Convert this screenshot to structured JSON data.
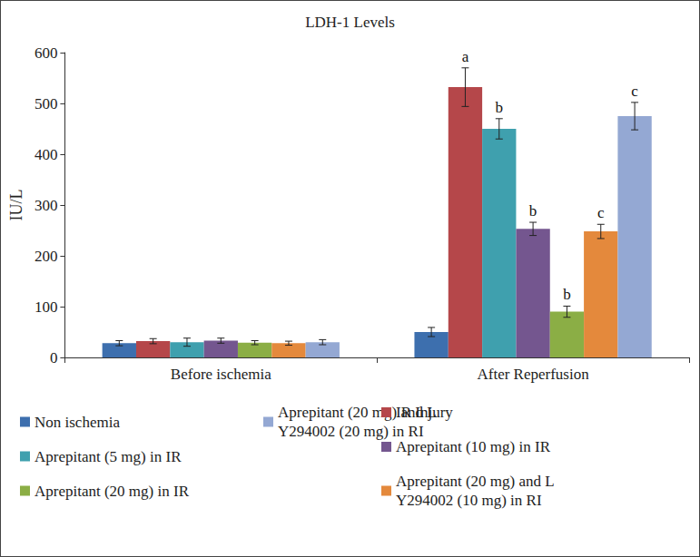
{
  "chart_data": {
    "type": "bar",
    "title": "LDH-1 Levels",
    "y_label": "IU/L",
    "categories": [
      "Before ischemia",
      "After Reperfusion"
    ],
    "series": [
      {
        "name": "Non ischemia",
        "color": "#3d6fae",
        "values": [
          28,
          50
        ],
        "errors": [
          5,
          9
        ],
        "annotations": [
          null,
          null
        ]
      },
      {
        "name": "IR Injury",
        "color": "#b5474a",
        "values": [
          32,
          532
        ],
        "errors": [
          5,
          38
        ],
        "annotations": [
          null,
          "a"
        ]
      },
      {
        "name": "Aprepitant (5 mg) in IR",
        "color": "#3fa0ae",
        "values": [
          30,
          450
        ],
        "errors": [
          8,
          20
        ],
        "annotations": [
          null,
          "b"
        ]
      },
      {
        "name": "Aprepitant (10 mg) in IR",
        "color": "#74568f",
        "values": [
          33,
          253
        ],
        "errors": [
          5,
          13
        ],
        "annotations": [
          null,
          "b"
        ]
      },
      {
        "name": "Aprepitant (20 mg) in IR",
        "color": "#8bae45",
        "values": [
          29,
          90
        ],
        "errors": [
          4,
          11
        ],
        "annotations": [
          null,
          "b"
        ]
      },
      {
        "name": "Aprepitant (20 mg) and L Y294002 (10 mg) in RI",
        "color": "#e4893c",
        "values": [
          28,
          248
        ],
        "errors": [
          4,
          14
        ],
        "annotations": [
          null,
          "c"
        ]
      },
      {
        "name": "Aprepitant (20 mg) and L Y294002 (20 mg) in RI",
        "color": "#94a8d3",
        "values": [
          30,
          475
        ],
        "errors": [
          5,
          27
        ],
        "annotations": [
          null,
          "c"
        ]
      }
    ],
    "ylim": [
      0,
      600
    ],
    "yticks": [
      0,
      100,
      200,
      300,
      400,
      500,
      600
    ],
    "grid": false,
    "legend": "bottom"
  }
}
